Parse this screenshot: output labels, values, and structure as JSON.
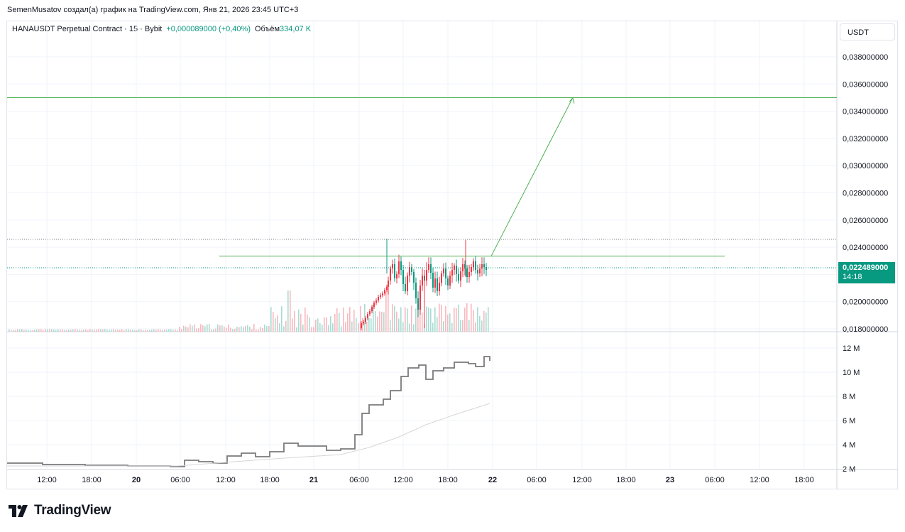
{
  "caption": "SemenMusatov создал(а) график на TradingView.com, Янв 21, 2026 23:45 UTC+3",
  "legend": {
    "symbol": "HANAUSDT Perpetual Contract · 15 · Bybit",
    "change": "+0,000089000 (+0,40%)",
    "volume_label": "Объём",
    "volume_value": "334,07 K"
  },
  "currency_button": "USDT",
  "last_price": {
    "price": "0,022489000",
    "countdown": "14:18"
  },
  "price_axis_labels": [
    "0,038000000",
    "0,036000000",
    "0,034000000",
    "0,032000000",
    "0,030000000",
    "0,028000000",
    "0,026000000",
    "0,024000000",
    "0,020000000",
    "0,018000000"
  ],
  "indicator_axis_labels": [
    "12 M",
    "10 M",
    "8 M",
    "6 M",
    "4 M",
    "2 M"
  ],
  "time_axis_labels": [
    "12:00",
    "18:00",
    "20",
    "06:00",
    "12:00",
    "18:00",
    "21",
    "06:00",
    "12:00",
    "18:00",
    "22",
    "06:00",
    "12:00",
    "18:00",
    "23",
    "06:00",
    "12:00",
    "18:00"
  ],
  "brand": "TradingView",
  "colors": {
    "up": "#089981",
    "down": "#f23645",
    "drawing": "#4caf50",
    "grid": "#f0f3fa"
  },
  "chart_data": {
    "type": "candlestick",
    "price_range": [
      0.018,
      0.039
    ],
    "drawings": {
      "target_level": 0.035,
      "breakout_level": 0.02335,
      "projection_from": 0.02335,
      "projection_to": 0.035
    }
  }
}
